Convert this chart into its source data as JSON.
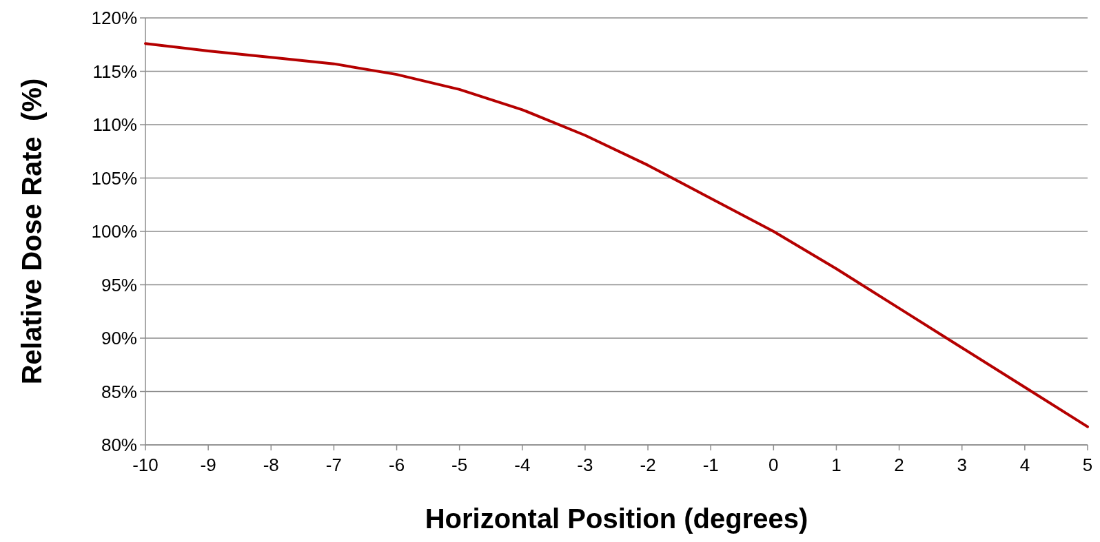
{
  "chart_data": {
    "type": "line",
    "xlabel": "Horizontal Position (degrees)",
    "ylabel": "Relative Dose Rate  (%)",
    "x": [
      -10,
      -9,
      -8,
      -7,
      -6,
      -5,
      -4,
      -3,
      -2,
      -1,
      0,
      1,
      2,
      3,
      4,
      5
    ],
    "series": [
      {
        "color": "#b50000",
        "values": [
          117.6,
          116.9,
          116.3,
          115.7,
          114.7,
          113.3,
          111.4,
          109.0,
          106.2,
          103.1,
          100.0,
          96.5,
          92.8,
          89.1,
          85.4,
          81.7
        ]
      }
    ],
    "xlim": [
      -10,
      5
    ],
    "xticks": [
      -10,
      -9,
      -8,
      -7,
      -6,
      -5,
      -4,
      -3,
      -2,
      -1,
      0,
      1,
      2,
      3,
      4,
      5
    ],
    "ylim": [
      80,
      120
    ],
    "yticks": [
      {
        "value": 80,
        "label": "80%"
      },
      {
        "value": 85,
        "label": "85%"
      },
      {
        "value": 90,
        "label": "90%"
      },
      {
        "value": 95,
        "label": "95%"
      },
      {
        "value": 100,
        "label": "100%"
      },
      {
        "value": 105,
        "label": "105%"
      },
      {
        "value": 110,
        "label": "110%"
      },
      {
        "value": 115,
        "label": "115%"
      },
      {
        "value": 120,
        "label": "120%"
      }
    ],
    "grid": "y",
    "marker": "none",
    "line_style": "solid"
  }
}
